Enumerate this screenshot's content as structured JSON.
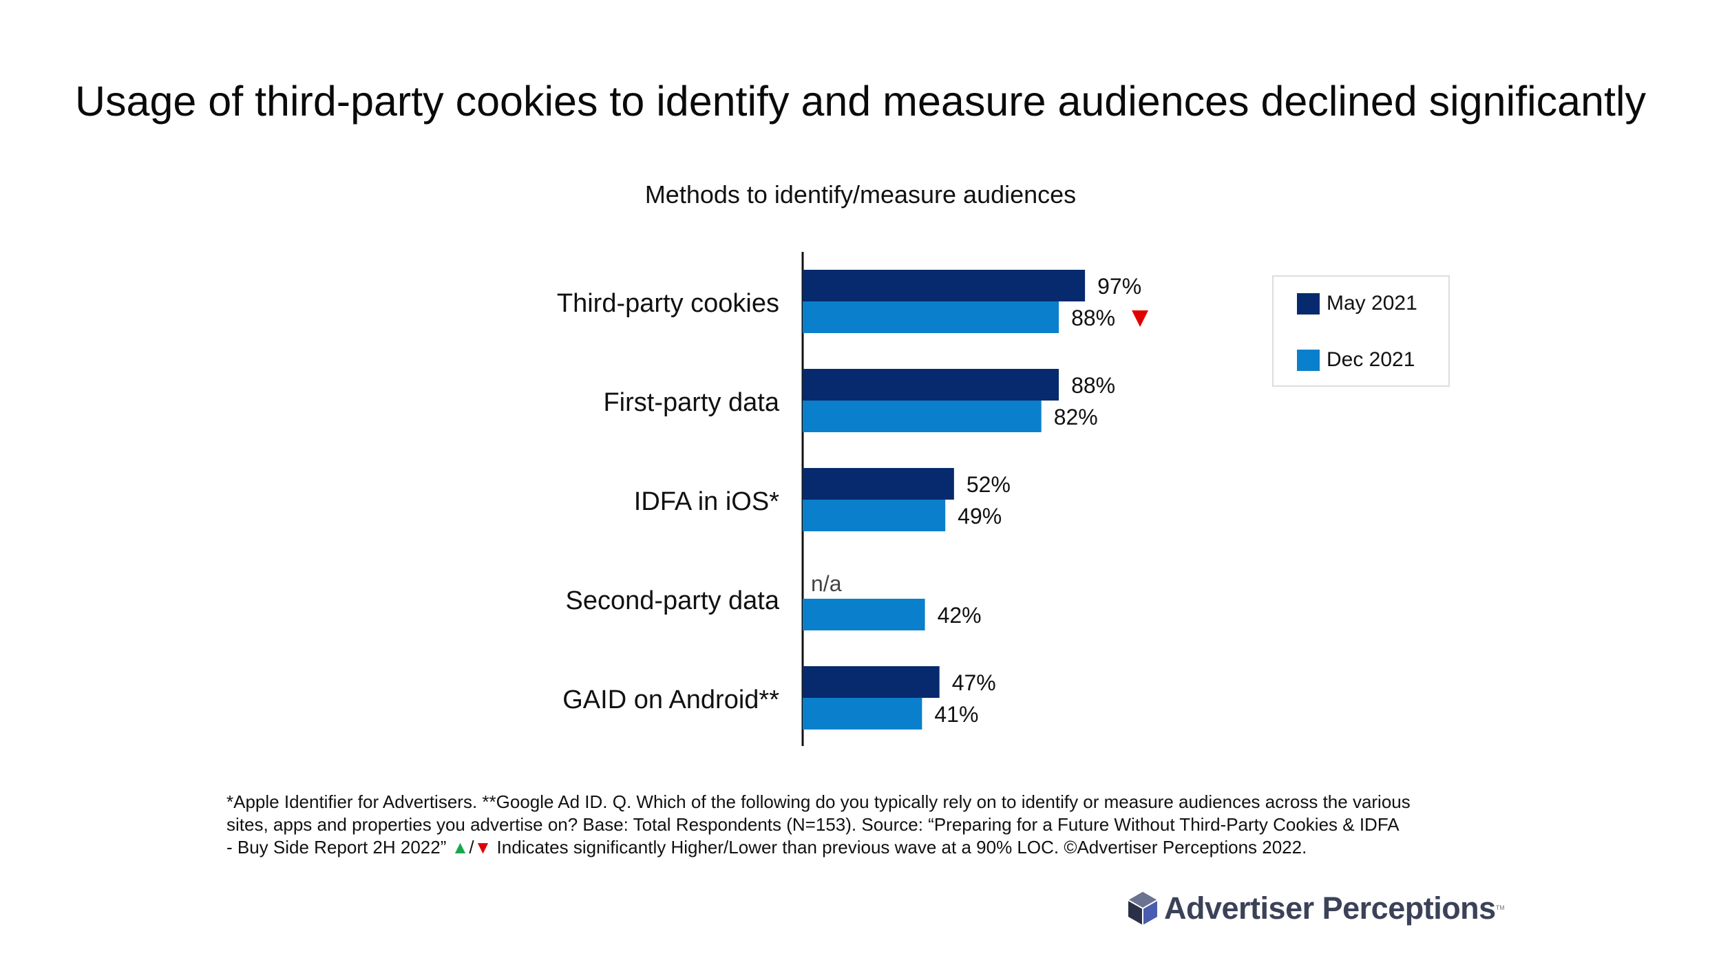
{
  "headline": "Usage of third-party cookies to identify and measure audiences declined significantly",
  "colors": {
    "may_2021": "#062a6d",
    "dec_2021": "#0a7fcc",
    "down_marker": "#e00000",
    "up_marker": "#17a84a"
  },
  "chart_data": {
    "type": "bar",
    "orientation": "horizontal",
    "title": "Methods to identify/measure audiences",
    "categories": [
      "Third-party cookies",
      "First-party data",
      "IDFA in iOS*",
      "Second-party data",
      "GAID on Android**"
    ],
    "series": [
      {
        "name": "May 2021",
        "values": [
          97,
          88,
          52,
          null,
          47
        ],
        "labels": [
          "97%",
          "88%",
          "52%",
          "n/a",
          "47%"
        ]
      },
      {
        "name": "Dec 2021",
        "values": [
          88,
          82,
          49,
          42,
          41
        ],
        "labels": [
          "88%",
          "82%",
          "49%",
          "42%",
          "41%"
        ]
      }
    ],
    "significance_markers": [
      {
        "category": "Third-party cookies",
        "series": "Dec 2021",
        "direction": "down"
      }
    ],
    "xlim": [
      0,
      100
    ],
    "grid": false,
    "legend_position": "right"
  },
  "legend": {
    "items": [
      "May 2021",
      "Dec 2021"
    ]
  },
  "footnote": {
    "line1": "*Apple Identifier for Advertisers. **Google Ad ID.  Q. Which of the following do you typically rely on to identify or measure audiences across the various",
    "line2": "sites, apps and properties you advertise on?   Base: Total Respondents (N=153). Source: “Preparing for a Future Without Third-Party Cookies & IDFA",
    "line3_pre": "- Buy Side Report 2H 2022” ",
    "up_symbol": "▲",
    "slash": "/",
    "down_symbol": "▼",
    "line3_post": " Indicates significantly Higher/Lower than previous wave at a 90% LOC.  ©Advertiser Perceptions 2022."
  },
  "logo": {
    "text": "Advertiser Perceptions",
    "tm": "TM"
  }
}
